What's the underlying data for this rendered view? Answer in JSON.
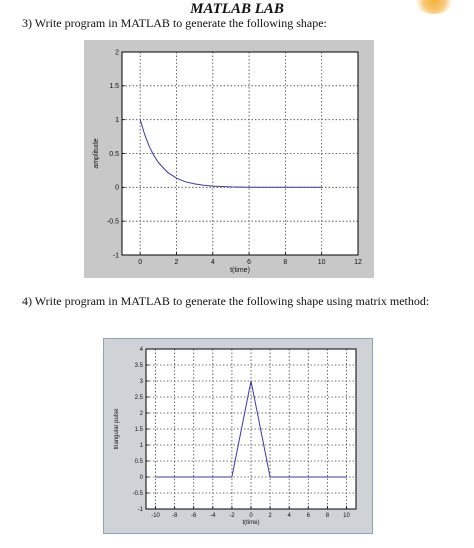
{
  "page": {
    "title": "MATLAB LAB",
    "question3": "3) Write program in MATLAB to generate the following shape:",
    "question4": "4) Write program in MATLAB to generate the following shape using matrix method:"
  },
  "chart_data": [
    {
      "type": "line",
      "title": "",
      "xlabel": "t(time)",
      "ylabel": "amplitude",
      "xlim": [
        -1,
        12
      ],
      "ylim": [
        -1,
        2
      ],
      "xticks": [
        "0",
        "2",
        "4",
        "6",
        "8",
        "10",
        "12"
      ],
      "yticks": [
        "-1",
        "-0.5",
        "0",
        "0.5",
        "1",
        "1.5",
        "2"
      ],
      "grid": true,
      "series": [
        {
          "color": "#3a3aa8",
          "x": [
            0,
            0.25,
            0.5,
            0.75,
            1,
            1.5,
            2,
            2.5,
            3,
            3.5,
            4,
            5,
            6,
            7,
            8,
            9,
            10
          ],
          "y": [
            1,
            0.779,
            0.607,
            0.472,
            0.368,
            0.223,
            0.135,
            0.082,
            0.05,
            0.03,
            0.018,
            0.007,
            0.002,
            0.001,
            0,
            0,
            0
          ]
        }
      ]
    },
    {
      "type": "line",
      "title": "",
      "xlabel": "t(time)",
      "ylabel": "triangular pulse",
      "xlim": [
        -11,
        11
      ],
      "ylim": [
        -1,
        4
      ],
      "xticks": [
        "-10",
        "-8",
        "-6",
        "-4",
        "-2",
        "0",
        "2",
        "4",
        "6",
        "8",
        "10"
      ],
      "yticks": [
        "-1",
        "-0.5",
        "0",
        "0.5",
        "1",
        "1.5",
        "2",
        "2.5",
        "3",
        "3.5",
        "4"
      ],
      "grid": true,
      "series": [
        {
          "color": "#3a3aa8",
          "x": [
            -10,
            -2,
            0,
            2,
            10
          ],
          "y": [
            0,
            0,
            3,
            0,
            0
          ]
        }
      ]
    }
  ]
}
